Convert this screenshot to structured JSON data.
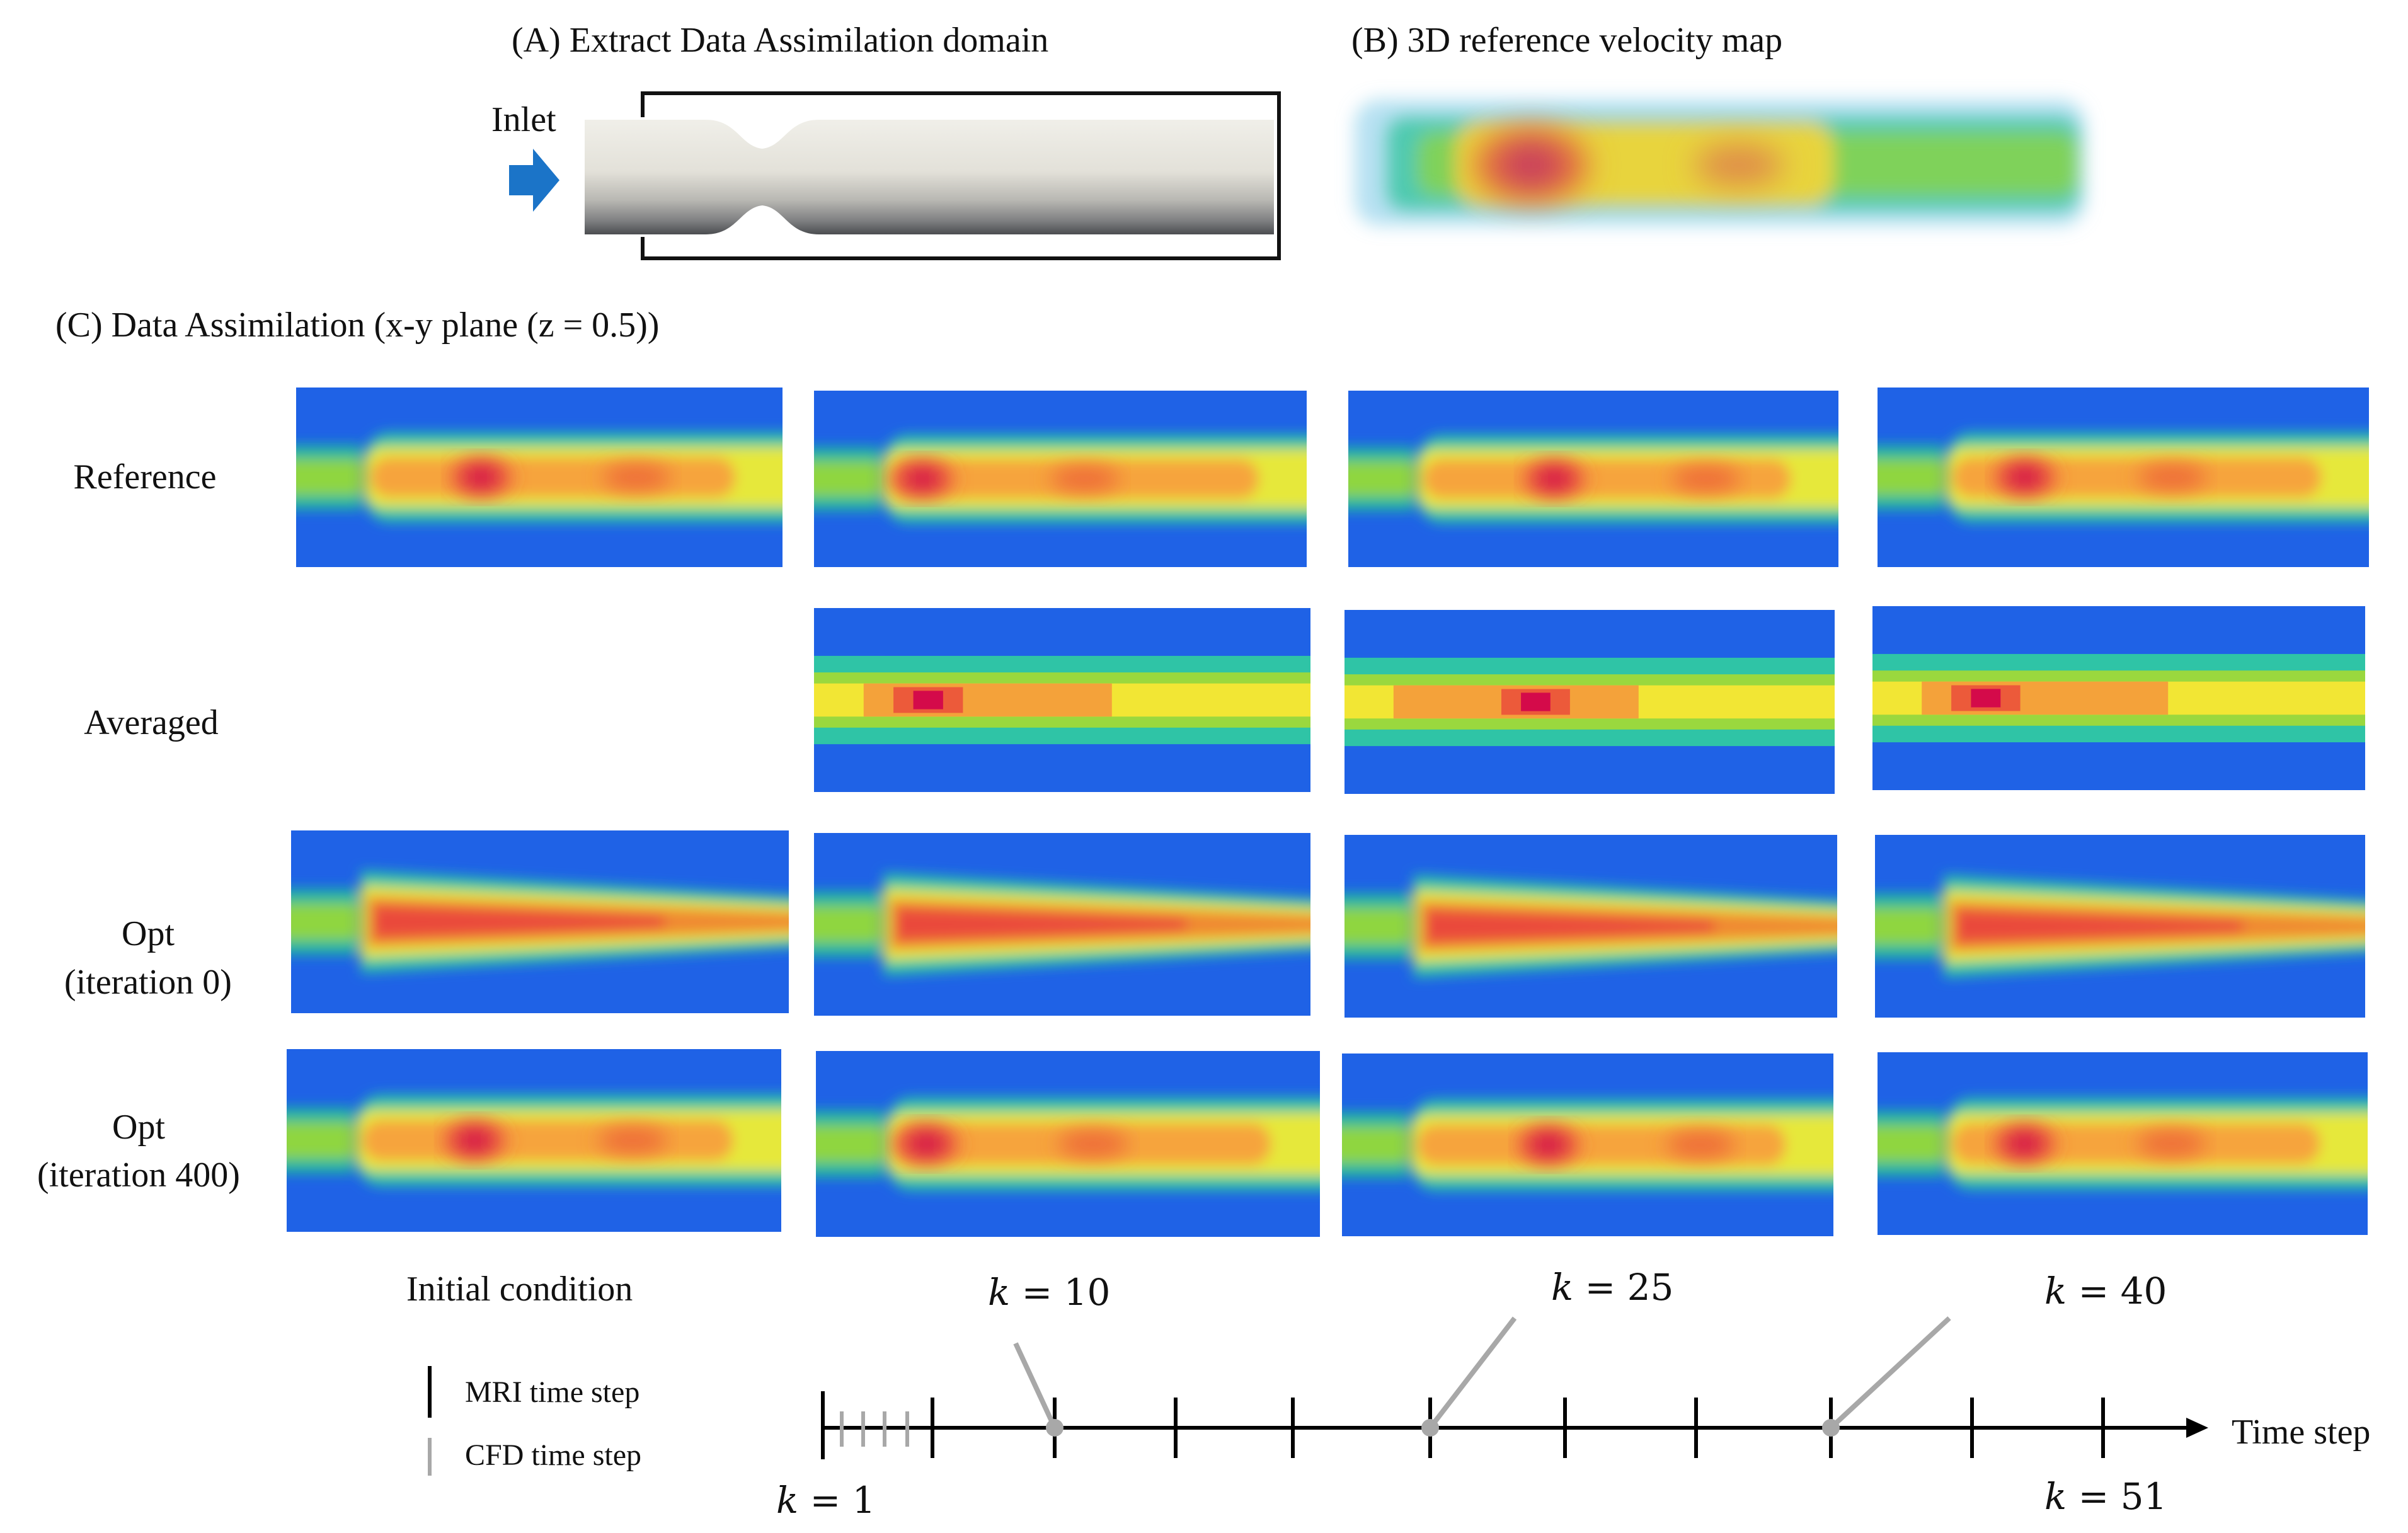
{
  "panel_a": {
    "title": "(A) Extract Data Assimilation domain",
    "inlet_label": "Inlet"
  },
  "panel_b": {
    "title": "(B) 3D reference velocity map"
  },
  "panel_c": {
    "title": "(C) Data Assimilation (x-y plane (z = 0.5))",
    "rows": [
      {
        "id": "reference",
        "label": "Reference"
      },
      {
        "id": "averaged",
        "label": "Averaged"
      },
      {
        "id": "opt0",
        "label_line1": "Opt",
        "label_line2": "(iteration 0)"
      },
      {
        "id": "opt400",
        "label_line1": "Opt",
        "label_line2": "(iteration 400)"
      }
    ],
    "columns": [
      "Initial condition",
      "k = 10",
      "k = 25",
      "k = 40"
    ],
    "initial_condition_label": "Initial condition"
  },
  "timeline": {
    "axis_label": "Time step",
    "k_labels": {
      "k1": "1",
      "k10": "10",
      "k25": "25",
      "k40": "40",
      "k51": "51"
    },
    "k_symbol": "k",
    "legend": {
      "mri": "MRI time step",
      "cfd": "CFD time step"
    }
  },
  "colors": {
    "background_blue": "#1f62e6",
    "peak_red": "#d40a4a",
    "tick_mri": "#000000",
    "tick_cfd": "#a8a8a8",
    "inlet_arrow": "#1b74c8",
    "pipe_light": "#e6e4dd",
    "pipe_dark": "#55575a"
  }
}
